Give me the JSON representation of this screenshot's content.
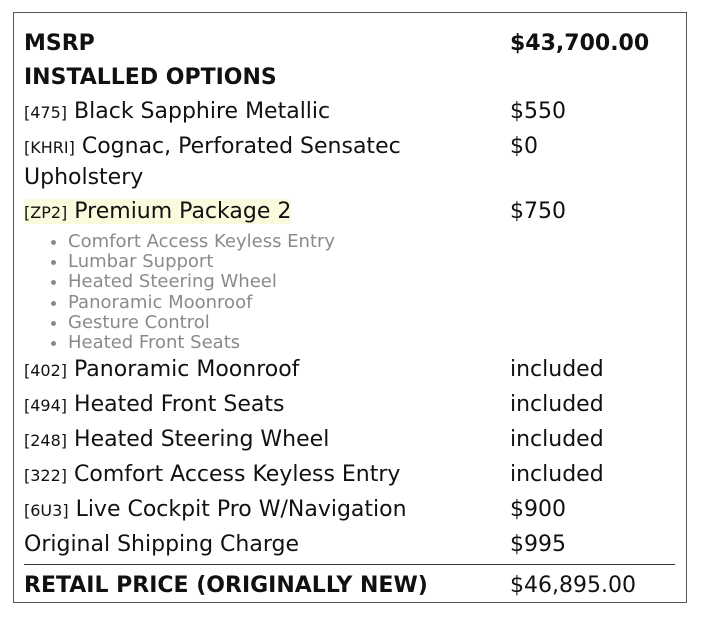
{
  "msrp": {
    "label": "MSRP",
    "value": "$43,700.00"
  },
  "installed_options_heading": "INSTALLED OPTIONS",
  "options_before": [
    {
      "code": "[475]",
      "name": "Black Sapphire Metallic",
      "price": "$550"
    },
    {
      "code": "[KHRI]",
      "name": "Cognac, Perforated Sensatec Upholstery",
      "price": "$0"
    }
  ],
  "package": {
    "code": "[ZP2]",
    "name": "Premium Package 2",
    "price": "$750",
    "items": [
      "Comfort Access Keyless Entry",
      "Lumbar Support",
      "Heated Steering Wheel",
      "Panoramic Moonroof",
      "Gesture Control",
      "Heated Front Seats"
    ]
  },
  "options_after": [
    {
      "code": "[402]",
      "name": "Panoramic Moonroof",
      "price": "included"
    },
    {
      "code": "[494]",
      "name": "Heated Front Seats",
      "price": "included"
    },
    {
      "code": "[248]",
      "name": "Heated Steering Wheel",
      "price": "included"
    },
    {
      "code": "[322]",
      "name": "Comfort Access Keyless Entry",
      "price": "included"
    },
    {
      "code": "[6U3]",
      "name": "Live Cockpit Pro W/Navigation",
      "price": "$900"
    }
  ],
  "shipping": {
    "label": "Original Shipping Charge",
    "value": "$995"
  },
  "total": {
    "label": "RETAIL PRICE (ORIGINALLY NEW)",
    "value": "$46,895.00"
  }
}
